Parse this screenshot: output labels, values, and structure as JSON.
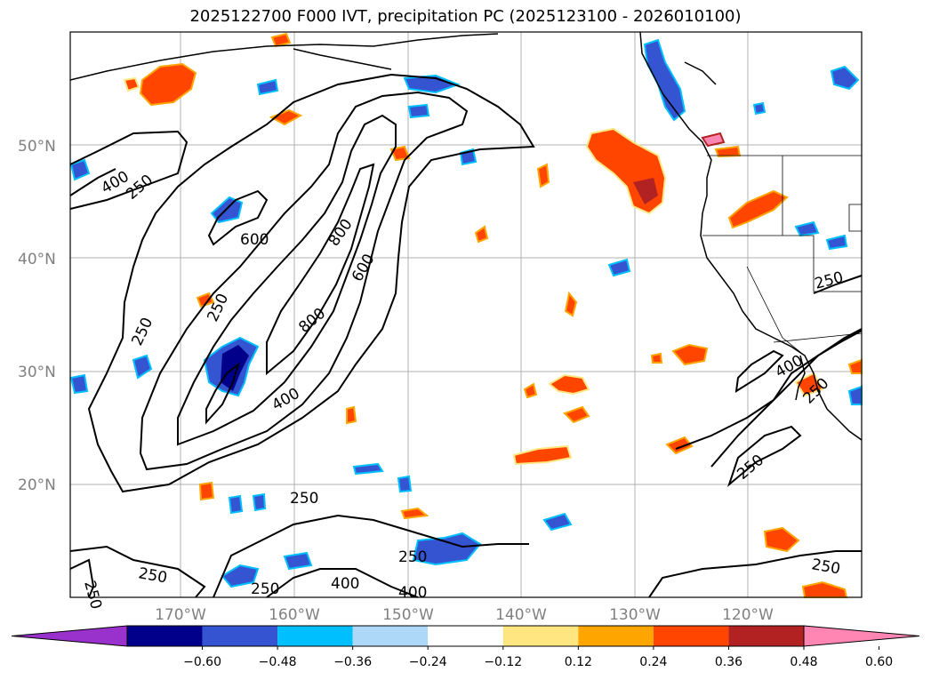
{
  "title": "2025122700 F000 IVT, precipitation PC (2025123100 - 2026010100)",
  "map": {
    "lat_labels": [
      "50°N",
      "40°N",
      "30°N",
      "20°N"
    ],
    "lon_labels": [
      "170°W",
      "160°W",
      "150°W",
      "140°W",
      "130°W",
      "120°W"
    ],
    "tick_label_color": "#808080",
    "contour_labels": [
      {
        "id": "c1",
        "text": "400"
      },
      {
        "id": "c2",
        "text": "250"
      },
      {
        "id": "c3",
        "text": "600"
      },
      {
        "id": "c4",
        "text": "800"
      },
      {
        "id": "c5",
        "text": "600"
      },
      {
        "id": "c6",
        "text": "250"
      },
      {
        "id": "c7",
        "text": "250"
      },
      {
        "id": "c8",
        "text": "800"
      },
      {
        "id": "c9",
        "text": "400"
      },
      {
        "id": "c10",
        "text": "250"
      },
      {
        "id": "c11",
        "text": "250"
      },
      {
        "id": "c12",
        "text": "250"
      },
      {
        "id": "c13",
        "text": "250"
      },
      {
        "id": "c14",
        "text": "400"
      },
      {
        "id": "c15",
        "text": "250"
      },
      {
        "id": "c16",
        "text": "400"
      },
      {
        "id": "c17",
        "text": "400"
      },
      {
        "id": "c18",
        "text": "250"
      },
      {
        "id": "c19",
        "text": "250"
      },
      {
        "id": "c20",
        "text": "250"
      },
      {
        "id": "c21",
        "text": "250"
      }
    ]
  },
  "colorbar": {
    "colors": [
      "#9932cc",
      "#00008b",
      "#3454d1",
      "#00bfff",
      "#add8f7",
      "#ffffff",
      "#ffe680",
      "#ffa500",
      "#ff4500",
      "#b22222",
      "#ff85b3"
    ],
    "tick_labels": [
      "−0.60",
      "−0.48",
      "−0.36",
      "−0.24",
      "−0.12",
      "0.12",
      "0.24",
      "0.36",
      "0.48",
      "0.60"
    ]
  }
}
